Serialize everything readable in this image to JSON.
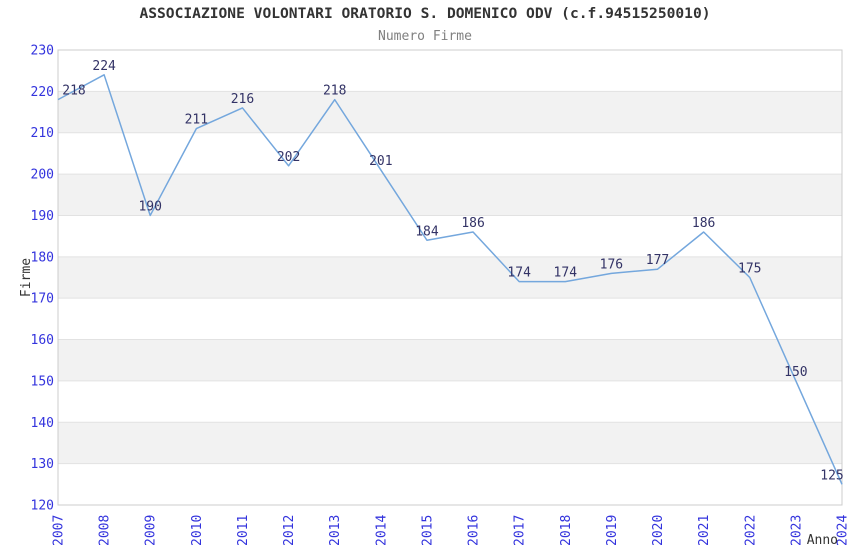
{
  "chart_data": {
    "type": "line",
    "title": "ASSOCIAZIONE VOLONTARI ORATORIO S. DOMENICO ODV (c.f.94515250010)",
    "subtitle": "Numero Firme",
    "xlabel": "Anno",
    "ylabel": "Firme",
    "categories": [
      "2007",
      "2008",
      "2009",
      "2010",
      "2011",
      "2012",
      "2013",
      "2014",
      "2015",
      "2016",
      "2017",
      "2018",
      "2019",
      "2020",
      "2021",
      "2022",
      "2023",
      "2024"
    ],
    "values": [
      218,
      224,
      190,
      211,
      216,
      202,
      218,
      201,
      184,
      186,
      174,
      174,
      176,
      177,
      186,
      175,
      150,
      125
    ],
    "ylim": [
      120,
      230
    ],
    "yticks": [
      230,
      220,
      210,
      200,
      190,
      180,
      170,
      160,
      150,
      140,
      130,
      120
    ],
    "grid": "horizontal-lines-with-alternating-bands",
    "legend_position": "none",
    "markers": "none",
    "colors": {
      "line": "#74a7dd",
      "data_labels": "#333366",
      "tick_labels": "#3333dd",
      "axis_titles": "#333333",
      "title": "#333333",
      "subtitle": "#808080",
      "band": "#f2f2f2",
      "gridline": "#e2e2e2",
      "border": "#cccccc",
      "background": "#ffffff"
    }
  }
}
